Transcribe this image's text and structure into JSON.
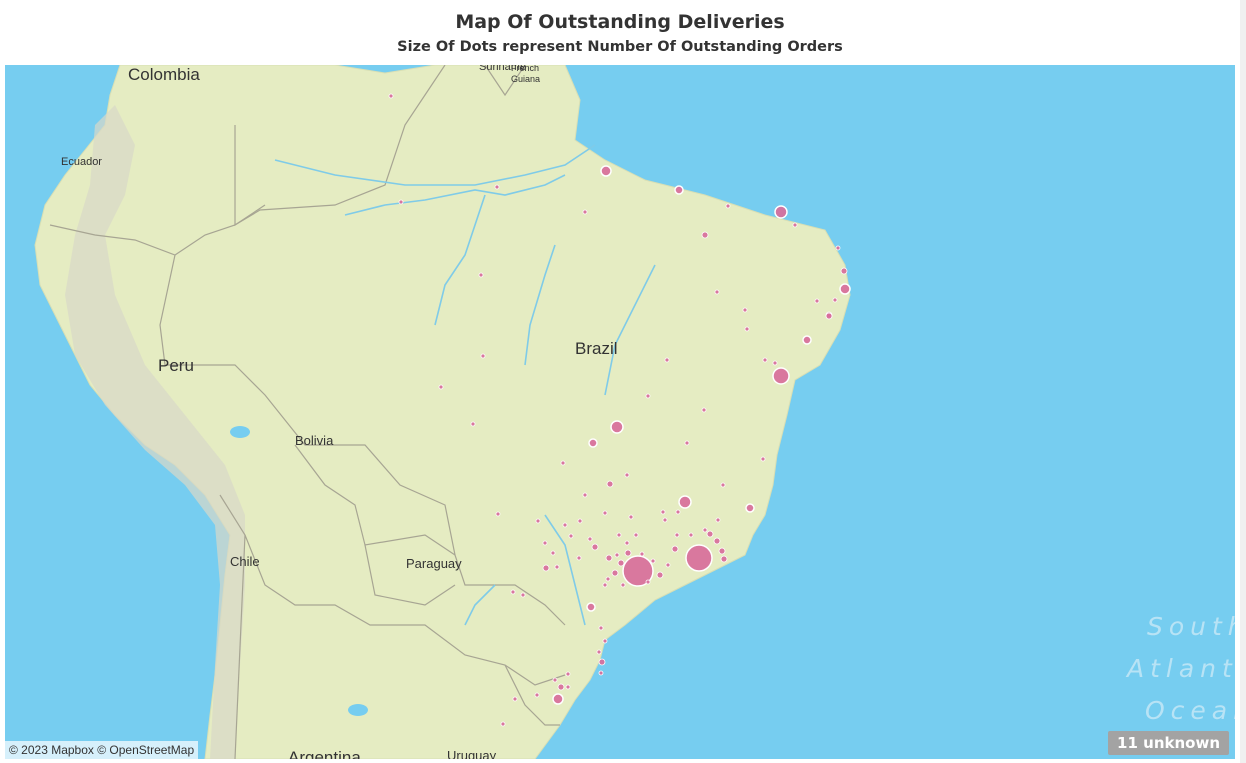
{
  "header": {
    "title": "Map Of Outstanding Deliveries",
    "subtitle": "Size Of Dots represent Number Of  Outstanding Orders"
  },
  "map": {
    "labels": {
      "colombia": "Colombia",
      "suriname": "Suriname",
      "french_guiana_1": "French",
      "french_guiana_2": "Guiana",
      "ecuador": "Ecuador",
      "peru": "Peru",
      "brazil": "Brazil",
      "bolivia": "Bolivia",
      "chile": "Chile",
      "paraguay": "Paraguay",
      "argentina": "Argentina",
      "uruguay": "Uruguay"
    },
    "ocean": {
      "line1": "South",
      "line2": "Atlant",
      "line3": "Ocean"
    },
    "attribution": "© 2023 Mapbox © OpenStreetMap",
    "unknown_badge": "11 unknown",
    "colors": {
      "water": "#76cdf0",
      "land": "#e5ecc2",
      "dot": "#d86e9b",
      "dot_stroke": "#ffffff"
    }
  }
}
